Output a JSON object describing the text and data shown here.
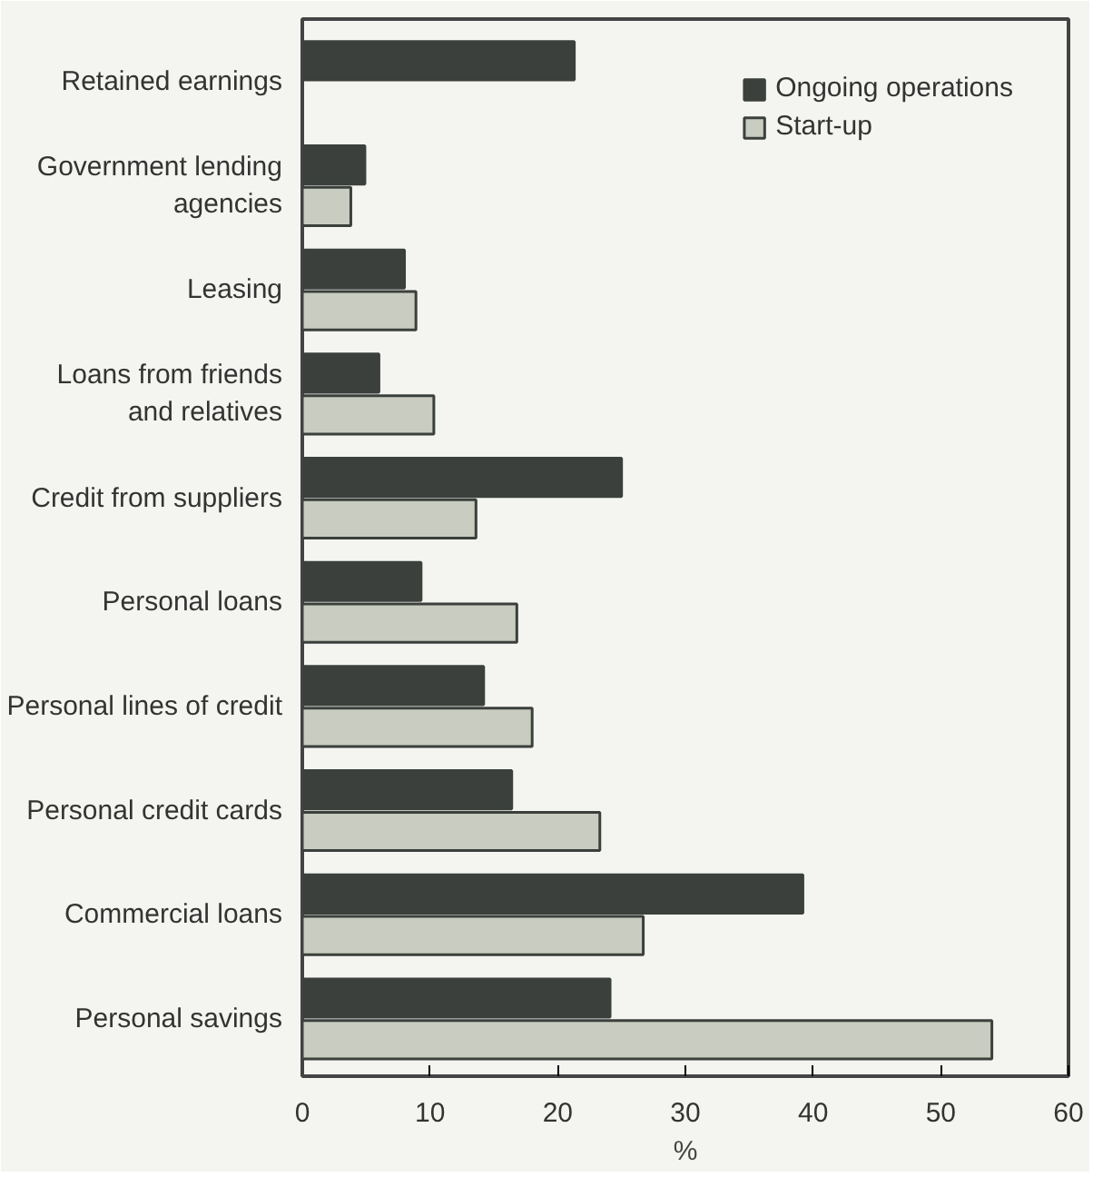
{
  "chart_data": {
    "type": "bar",
    "orientation": "horizontal",
    "xlabel": "%",
    "xlim": [
      0,
      60
    ],
    "xticks": [
      0,
      10,
      20,
      30,
      40,
      50,
      60
    ],
    "grid": false,
    "legend": "top right",
    "categories": [
      "Retained earnings",
      "Government lending\nagencies",
      "Leasing",
      "Loans from friends\nand relatives",
      "Credit from suppliers",
      "Personal loans",
      "Personal lines of credit",
      "Personal credit cards",
      "Commercial loans",
      "Personal savings"
    ],
    "series": [
      {
        "name": "Ongoing operations",
        "color": "#3b403c",
        "values": [
          21.3,
          4.9,
          8,
          6,
          25,
          9.3,
          14.2,
          16.4,
          39.2,
          24.1
        ]
      },
      {
        "name": "Start-up",
        "color": "#c9ccc0",
        "values": [
          null,
          3.8,
          8.9,
          10.3,
          13.6,
          16.8,
          18,
          23.3,
          26.7,
          54
        ]
      }
    ]
  }
}
